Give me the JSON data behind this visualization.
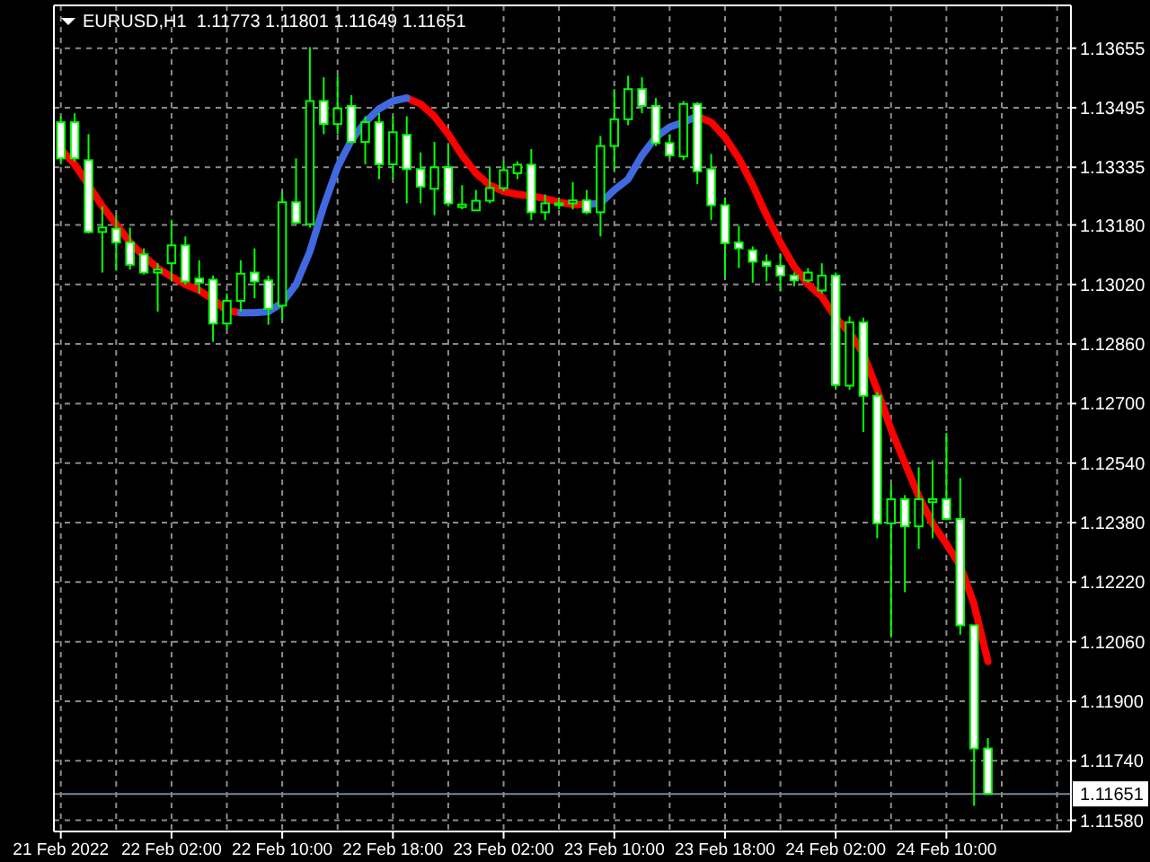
{
  "chart_data": {
    "type": "candlestick",
    "title": "EURUSD,H1  1.11773 1.11801 1.11649 1.11651",
    "x": [
      "2022-02-21T18:00",
      "2022-02-21T19:00",
      "2022-02-21T20:00",
      "2022-02-21T21:00",
      "2022-02-21T22:00",
      "2022-02-21T23:00",
      "2022-02-22T00:00",
      "2022-02-22T01:00",
      "2022-02-22T02:00",
      "2022-02-22T03:00",
      "2022-02-22T04:00",
      "2022-02-22T05:00",
      "2022-02-22T06:00",
      "2022-02-22T07:00",
      "2022-02-22T08:00",
      "2022-02-22T09:00",
      "2022-02-22T10:00",
      "2022-02-22T11:00",
      "2022-02-22T12:00",
      "2022-02-22T13:00",
      "2022-02-22T14:00",
      "2022-02-22T15:00",
      "2022-02-22T16:00",
      "2022-02-22T17:00",
      "2022-02-22T18:00",
      "2022-02-22T19:00",
      "2022-02-22T20:00",
      "2022-02-22T21:00",
      "2022-02-22T22:00",
      "2022-02-22T23:00",
      "2022-02-23T00:00",
      "2022-02-23T01:00",
      "2022-02-23T02:00",
      "2022-02-23T03:00",
      "2022-02-23T04:00",
      "2022-02-23T05:00",
      "2022-02-23T06:00",
      "2022-02-23T07:00",
      "2022-02-23T08:00",
      "2022-02-23T09:00",
      "2022-02-23T10:00",
      "2022-02-23T11:00",
      "2022-02-23T12:00",
      "2022-02-23T13:00",
      "2022-02-23T14:00",
      "2022-02-23T15:00",
      "2022-02-23T16:00",
      "2022-02-23T17:00",
      "2022-02-23T18:00",
      "2022-02-23T19:00",
      "2022-02-23T20:00",
      "2022-02-23T21:00",
      "2022-02-23T22:00",
      "2022-02-23T23:00",
      "2022-02-24T00:00",
      "2022-02-24T01:00",
      "2022-02-24T02:00",
      "2022-02-24T03:00",
      "2022-02-24T04:00",
      "2022-02-24T05:00",
      "2022-02-24T06:00",
      "2022-02-24T07:00",
      "2022-02-24T08:00",
      "2022-02-24T09:00",
      "2022-02-24T10:00",
      "2022-02-24T11:00",
      "2022-02-24T12:00",
      "2022-02-24T13:00"
    ],
    "series": [
      {
        "type": "candlestick",
        "color": "#00ff00",
        "colors": [
          "#ffffff",
          "#ffffff",
          "#ffffff",
          "#000000",
          "#ffffff",
          "#ffffff",
          "#ffffff",
          "#000000",
          "#000000",
          "#ffffff",
          "#ffffff",
          "#ffffff",
          "#000000",
          "#000000",
          "#ffffff",
          "#ffffff",
          "#000000",
          "#ffffff",
          "#000000",
          "#ffffff",
          "#000000",
          "#ffffff",
          "#000000",
          "#ffffff",
          "#000000",
          "#ffffff",
          "#ffffff",
          "#000000",
          "#ffffff",
          "#000000",
          "#000000",
          "#000000",
          "#000000",
          "#000000",
          "#ffffff",
          "#000000",
          "#ffffff",
          "#000000",
          "#ffffff",
          "#000000",
          "#000000",
          "#000000",
          "#ffffff",
          "#ffffff",
          "#ffffff",
          "#000000",
          "#ffffff",
          "#ffffff",
          "#ffffff",
          "#ffffff",
          "#ffffff",
          "#ffffff",
          "#ffffff",
          "#ffffff",
          "#000000",
          "#000000",
          "#ffffff",
          "#000000",
          "#ffffff",
          "#ffffff",
          "#000000",
          "#ffffff",
          "#000000",
          "#000000",
          "#ffffff",
          "#ffffff",
          "#ffffff",
          "#ffffff"
        ],
        "ohlc": [
          [
            1.13456,
            1.13472,
            1.13343,
            1.13359
          ],
          [
            1.13456,
            1.1348,
            1.13351,
            1.13359
          ],
          [
            1.13354,
            1.13424,
            1.13157,
            1.13161
          ],
          [
            1.13161,
            1.1323,
            1.13052,
            1.13173
          ],
          [
            1.1317,
            1.13206,
            1.13057,
            1.13133
          ],
          [
            1.13133,
            1.13173,
            1.1306,
            1.13073
          ],
          [
            1.13101,
            1.13117,
            1.13047,
            1.13052
          ],
          [
            1.13052,
            1.13077,
            1.12947,
            1.1306
          ],
          [
            1.13077,
            1.13194,
            1.13028,
            1.13125
          ],
          [
            1.13125,
            1.13149,
            1.1302,
            1.13028
          ],
          [
            1.13036,
            1.13085,
            1.12996,
            1.13025
          ],
          [
            1.13033,
            1.13044,
            1.12866,
            1.12915
          ],
          [
            1.12915,
            1.12996,
            1.12899,
            1.12976
          ],
          [
            1.12976,
            1.13085,
            1.12947,
            1.13049
          ],
          [
            1.13052,
            1.13117,
            1.12983,
            1.13028
          ],
          [
            1.13031,
            1.13044,
            1.12912,
            1.12955
          ],
          [
            1.12963,
            1.1327,
            1.12923,
            1.13241
          ],
          [
            1.13241,
            1.13359,
            1.13182,
            1.13186
          ],
          [
            1.13182,
            1.13658,
            1.13173,
            1.13513
          ],
          [
            1.13513,
            1.13577,
            1.13424,
            1.13451
          ],
          [
            1.13451,
            1.13581,
            1.13424,
            1.13493
          ],
          [
            1.135,
            1.13529,
            1.134,
            1.13403
          ],
          [
            1.13403,
            1.13472,
            1.13343,
            1.13456
          ],
          [
            1.13456,
            1.1348,
            1.13303,
            1.13343
          ],
          [
            1.13343,
            1.13472,
            1.13303,
            1.13429
          ],
          [
            1.13422,
            1.13472,
            1.13238,
            1.1333
          ],
          [
            1.1333,
            1.13375,
            1.13238,
            1.13283
          ],
          [
            1.13277,
            1.13403,
            1.13206,
            1.13335
          ],
          [
            1.13335,
            1.134,
            1.1323,
            1.13238
          ],
          [
            1.13228,
            1.13287,
            1.13222,
            1.13235
          ],
          [
            1.13219,
            1.13274,
            1.13219,
            1.13245
          ],
          [
            1.13245,
            1.13335,
            1.13238,
            1.13279
          ],
          [
            1.13279,
            1.13351,
            1.1327,
            1.13327
          ],
          [
            1.13319,
            1.13351,
            1.13303,
            1.13342
          ],
          [
            1.13342,
            1.13384,
            1.13193,
            1.13214
          ],
          [
            1.13214,
            1.13262,
            1.13193,
            1.13238
          ],
          [
            1.13238,
            1.13254,
            1.13222,
            1.13235
          ],
          [
            1.13238,
            1.13295,
            1.13222,
            1.13246
          ],
          [
            1.13246,
            1.13274,
            1.13209,
            1.13214
          ],
          [
            1.13214,
            1.13419,
            1.13149,
            1.13392
          ],
          [
            1.13392,
            1.13545,
            1.13327,
            1.13464
          ],
          [
            1.13464,
            1.13581,
            1.13448,
            1.13545
          ],
          [
            1.13545,
            1.13577,
            1.1348,
            1.135
          ],
          [
            1.135,
            1.13521,
            1.13392,
            1.134
          ],
          [
            1.134,
            1.13424,
            1.13359,
            1.13367
          ],
          [
            1.13364,
            1.13513,
            1.13354,
            1.13505
          ],
          [
            1.13505,
            1.1351,
            1.1329,
            1.13324
          ],
          [
            1.1333,
            1.13371,
            1.13193,
            1.13233
          ],
          [
            1.13233,
            1.13254,
            1.13039,
            1.13131
          ],
          [
            1.13133,
            1.13177,
            1.13064,
            1.13117
          ],
          [
            1.13112,
            1.13122,
            1.13025,
            1.13081
          ],
          [
            1.13081,
            1.13101,
            1.13028,
            1.1307
          ],
          [
            1.1307,
            1.13101,
            1.13001,
            1.13044
          ],
          [
            1.13044,
            1.13052,
            1.13015,
            1.13031
          ],
          [
            1.13031,
            1.13064,
            1.13025,
            1.13052
          ],
          [
            1.13004,
            1.13077,
            1.12996,
            1.13044
          ],
          [
            1.13044,
            1.13052,
            1.12737,
            1.1275
          ],
          [
            1.12748,
            1.12934,
            1.12737,
            1.12918
          ],
          [
            1.12918,
            1.12931,
            1.12624,
            1.12721
          ],
          [
            1.12721,
            1.12731,
            1.12338,
            1.12378
          ],
          [
            1.12378,
            1.12483,
            1.12071,
            1.12443
          ],
          [
            1.12443,
            1.12454,
            1.12193,
            1.1237
          ],
          [
            1.1237,
            1.12529,
            1.12309,
            1.12443
          ],
          [
            1.12435,
            1.12548,
            1.12338,
            1.12443
          ],
          [
            1.12443,
            1.12621,
            1.12386,
            1.1239
          ],
          [
            1.1239,
            1.125,
            1.12079,
            1.12104
          ],
          [
            1.12104,
            1.12104,
            1.11619,
            1.11773
          ],
          [
            1.11773,
            1.11801,
            1.11649,
            1.11651
          ]
        ]
      },
      {
        "type": "line",
        "color": "#ff0000",
        "values": [
          1.13384,
          1.13343,
          1.13287,
          1.1323,
          1.13182,
          1.13133,
          1.13096,
          1.13064,
          1.13041,
          1.1302,
          1.13004,
          1.1298,
          1.1295,
          1.12944,
          null,
          null,
          null,
          null,
          null,
          null,
          null,
          null,
          null,
          null,
          null,
          1.13521,
          1.13505,
          1.13472,
          1.13424,
          1.13367,
          1.13319,
          1.13287,
          1.1327,
          1.13262,
          1.13258,
          1.13251,
          1.13241,
          1.13235,
          1.13235,
          null,
          null,
          null,
          null,
          null,
          null,
          null,
          1.13472,
          1.13456,
          1.13416,
          1.13359,
          1.13287,
          1.13206,
          1.13133,
          1.13068,
          1.1302,
          1.12987,
          1.12931,
          1.12891,
          1.12834,
          1.12737,
          1.1263,
          1.1254,
          1.12451,
          1.12378,
          1.12322,
          1.12265,
          1.1216,
          1.12007
        ]
      },
      {
        "type": "line",
        "color": "#4169e1",
        "values": [
          null,
          null,
          null,
          null,
          null,
          null,
          null,
          null,
          null,
          null,
          null,
          null,
          null,
          1.12944,
          1.12944,
          1.12947,
          1.12971,
          1.1302,
          1.13109,
          1.1323,
          1.13335,
          1.13408,
          1.13456,
          1.13492,
          1.13513,
          1.13521,
          null,
          null,
          null,
          null,
          null,
          null,
          null,
          null,
          null,
          null,
          null,
          null,
          1.13235,
          1.13238,
          1.13274,
          1.13303,
          1.13367,
          1.13416,
          1.13443,
          1.13456,
          1.13472,
          null,
          null,
          null,
          null,
          null,
          null,
          null,
          null,
          null,
          null,
          null,
          null,
          null,
          null,
          null,
          null,
          null,
          null,
          null,
          null,
          null
        ]
      }
    ],
    "xlim": [
      "2022-02-21T17:30",
      "2022-02-24T19:00"
    ],
    "xticks": [
      {
        "value": "2022-02-21T18:00",
        "label": "21 Feb 2022"
      },
      {
        "value": "2022-02-21T22:00",
        "label": null
      },
      {
        "value": "2022-02-22T02:00",
        "label": "22 Feb 02:00"
      },
      {
        "value": "2022-02-22T06:00",
        "label": null
      },
      {
        "value": "2022-02-22T10:00",
        "label": "22 Feb 10:00"
      },
      {
        "value": "2022-02-22T14:00",
        "label": null
      },
      {
        "value": "2022-02-22T18:00",
        "label": "22 Feb 18:00"
      },
      {
        "value": "2022-02-22T22:00",
        "label": null
      },
      {
        "value": "2022-02-23T02:00",
        "label": "23 Feb 02:00"
      },
      {
        "value": "2022-02-23T06:00",
        "label": null
      },
      {
        "value": "2022-02-23T10:00",
        "label": "23 Feb 10:00"
      },
      {
        "value": "2022-02-23T14:00",
        "label": null
      },
      {
        "value": "2022-02-23T18:00",
        "label": "23 Feb 18:00"
      },
      {
        "value": "2022-02-23T22:00",
        "label": null
      },
      {
        "value": "2022-02-24T02:00",
        "label": "24 Feb 02:00"
      },
      {
        "value": "2022-02-24T06:00",
        "label": null
      },
      {
        "value": "2022-02-24T10:00",
        "label": "24 Feb 10:00"
      },
      {
        "value": "2022-02-24T14:00",
        "label": null
      },
      {
        "value": "2022-02-24T18:00",
        "label": null
      }
    ],
    "ylim": [
      1.1155,
      1.1377
    ],
    "yticks": [
      {
        "value": 1.1158,
        "label": "1.11580"
      },
      {
        "value": 1.1174,
        "label": "1.11740"
      },
      {
        "value": 1.119,
        "label": "1.11900"
      },
      {
        "value": 1.1206,
        "label": "1.12060"
      },
      {
        "value": 1.1222,
        "label": "1.12220"
      },
      {
        "value": 1.1238,
        "label": "1.12380"
      },
      {
        "value": 1.1254,
        "label": "1.12540"
      },
      {
        "value": 1.127,
        "label": "1.12700"
      },
      {
        "value": 1.1286,
        "label": "1.12860"
      },
      {
        "value": 1.1302,
        "label": "1.13020"
      },
      {
        "value": 1.1318,
        "label": "1.13180"
      },
      {
        "value": 1.13335,
        "label": "1.13335"
      },
      {
        "value": 1.13495,
        "label": "1.13495"
      },
      {
        "value": 1.13655,
        "label": "1.13655"
      }
    ],
    "grid": true,
    "ref_lines": [
      {
        "axis": "y",
        "value": 1.11651,
        "label": "1.11651",
        "color": "#778899"
      }
    ]
  }
}
